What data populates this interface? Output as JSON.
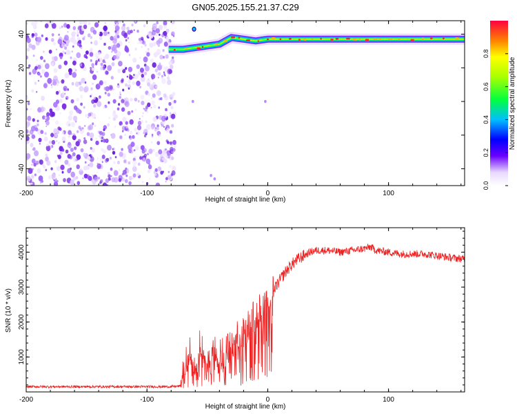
{
  "title": "GN05.2025.155.21.37.C29",
  "chart_data": [
    {
      "type": "heatmap",
      "xlabel": "Height of straight line (km)",
      "ylabel": "Frequency (Hz)",
      "xlim": [
        -200,
        163
      ],
      "ylim": [
        -50,
        48
      ],
      "x_ticks": [
        -200,
        -100,
        0,
        100
      ],
      "y_ticks": [
        -40,
        -20,
        0,
        20,
        40
      ],
      "colorbar": {
        "label": "Normalized spectral amplitude",
        "ticks": [
          0.0,
          0.2,
          0.4,
          0.6,
          0.8
        ],
        "range": [
          0,
          1
        ]
      },
      "noise_region_x": [
        -200,
        -80
      ],
      "signal_track": [
        {
          "x": -82,
          "y": 31
        },
        {
          "x": -70,
          "y": 31
        },
        {
          "x": -60,
          "y": 32
        },
        {
          "x": -50,
          "y": 33
        },
        {
          "x": -40,
          "y": 34
        },
        {
          "x": -30,
          "y": 38
        },
        {
          "x": -20,
          "y": 37
        },
        {
          "x": -10,
          "y": 36
        },
        {
          "x": 0,
          "y": 37
        },
        {
          "x": 20,
          "y": 37
        },
        {
          "x": 60,
          "y": 37
        },
        {
          "x": 100,
          "y": 37
        },
        {
          "x": 163,
          "y": 37
        }
      ]
    },
    {
      "type": "line",
      "xlabel": "Height of straight line (km)",
      "ylabel": "SNR (10 * v/v)",
      "xlim": [
        -200,
        163
      ],
      "ylim": [
        0,
        4700
      ],
      "x_ticks": [
        -200,
        -100,
        0,
        100
      ],
      "y_ticks": [
        1000,
        2000,
        3000,
        4000
      ],
      "line_color": "#ee2222",
      "series": [
        {
          "x": [
            -200,
            -150,
            -100,
            -80,
            -72,
            -70,
            -65,
            -60,
            -55,
            -50,
            -45,
            -40,
            -35,
            -30,
            -25,
            -20,
            -15,
            -10,
            -5,
            0,
            5,
            10,
            15,
            20,
            25,
            30,
            35,
            40,
            50,
            60,
            70,
            80,
            85,
            90,
            100,
            110,
            120,
            130,
            140,
            150,
            163
          ],
          "values": [
            150,
            150,
            150,
            150,
            170,
            650,
            1200,
            900,
            1500,
            800,
            1300,
            1100,
            1200,
            1300,
            1600,
            1700,
            2100,
            2200,
            2500,
            2700,
            2900,
            3200,
            3450,
            3650,
            3800,
            3900,
            4000,
            4050,
            4050,
            4000,
            4050,
            4100,
            4150,
            4050,
            4000,
            3950,
            3950,
            3950,
            3900,
            3850,
            3800
          ]
        }
      ]
    }
  ]
}
